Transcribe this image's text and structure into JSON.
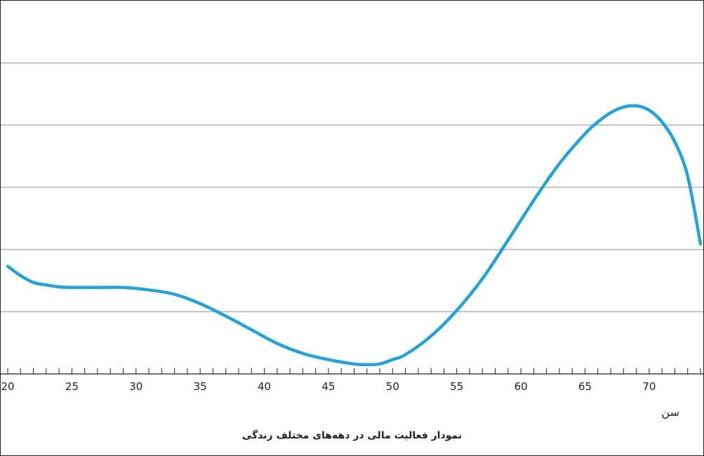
{
  "chart_data": {
    "type": "line",
    "title": "نمودار فعالیت مالی در دهه‌های مختلف زندگی",
    "xlabel": "سن",
    "ylabel": "",
    "x_ticks": [
      20,
      25,
      30,
      35,
      40,
      45,
      50,
      55,
      60,
      65,
      70
    ],
    "x_minor_step": 1,
    "xlim": [
      20,
      74
    ],
    "ylim": [
      0,
      6
    ],
    "y_gridlines": [
      1,
      2,
      3,
      4,
      5
    ],
    "grid": true,
    "legend": "none",
    "series": [
      {
        "color": "#1FA4E1",
        "x": [
          20,
          21,
          22,
          23,
          24,
          25,
          27,
          29,
          31,
          33,
          35,
          37,
          39,
          41,
          43,
          45,
          47,
          48,
          49,
          50,
          51,
          53,
          55,
          57,
          59,
          61,
          63,
          65,
          66,
          67,
          68,
          69,
          70,
          71,
          72,
          73,
          74
        ],
        "y": [
          1.73,
          1.58,
          1.47,
          1.43,
          1.4,
          1.39,
          1.39,
          1.39,
          1.35,
          1.28,
          1.13,
          0.93,
          0.71,
          0.49,
          0.33,
          0.23,
          0.16,
          0.15,
          0.16,
          0.23,
          0.31,
          0.61,
          1.02,
          1.53,
          2.15,
          2.79,
          3.38,
          3.86,
          4.05,
          4.2,
          4.29,
          4.31,
          4.24,
          4.05,
          3.73,
          3.18,
          2.09
        ]
      }
    ]
  }
}
